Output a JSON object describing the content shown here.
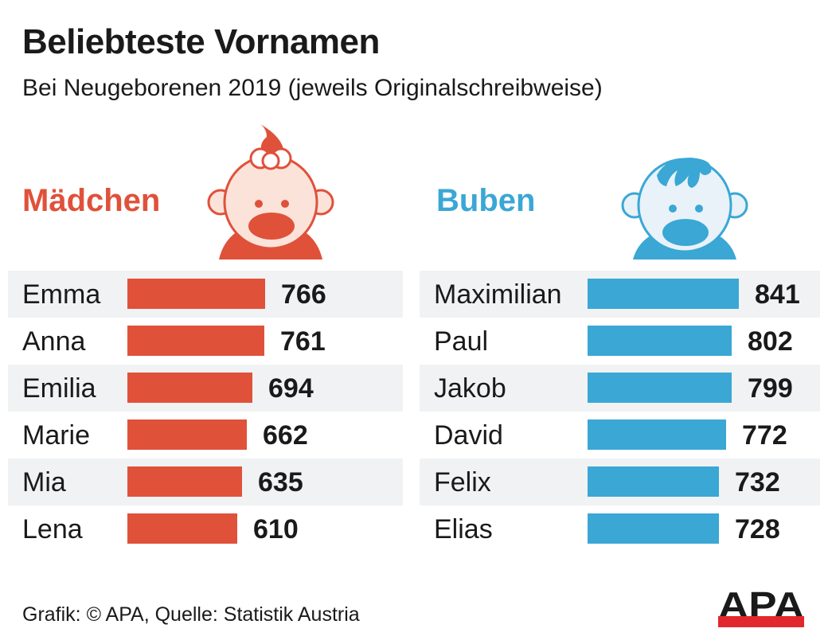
{
  "header": {
    "title": "Beliebteste Vornamen",
    "subtitle": "Bei Neugeborenen 2019 (jeweils Originalschreibweise)"
  },
  "colors": {
    "girls": "#e0513a",
    "girls_face": "#fbe3da",
    "boys": "#3aa7d5",
    "boys_face": "#e8f2f8",
    "row_shade": "#f1f2f3",
    "apa_red": "#e2282d"
  },
  "footer": {
    "credit": "Grafik: © APA, Quelle: Statistik Austria",
    "logo_text": "APA"
  },
  "chart_data": [
    {
      "type": "bar",
      "orientation": "horizontal",
      "title": "Mädchen",
      "icon": "baby-girl-icon",
      "categories": [
        "Emma",
        "Anna",
        "Emilia",
        "Marie",
        "Mia",
        "Lena"
      ],
      "values": [
        766,
        761,
        694,
        662,
        635,
        610
      ],
      "xlabel": "",
      "ylabel": "",
      "xlim": [
        0,
        841
      ],
      "grid": false,
      "data_labels": true
    },
    {
      "type": "bar",
      "orientation": "horizontal",
      "title": "Buben",
      "icon": "baby-boy-icon",
      "categories": [
        "Maximilian",
        "Paul",
        "Jakob",
        "David",
        "Felix",
        "Elias"
      ],
      "values": [
        841,
        802,
        799,
        772,
        732,
        728
      ],
      "xlabel": "",
      "ylabel": "",
      "xlim": [
        0,
        841
      ],
      "grid": false,
      "data_labels": true
    }
  ]
}
